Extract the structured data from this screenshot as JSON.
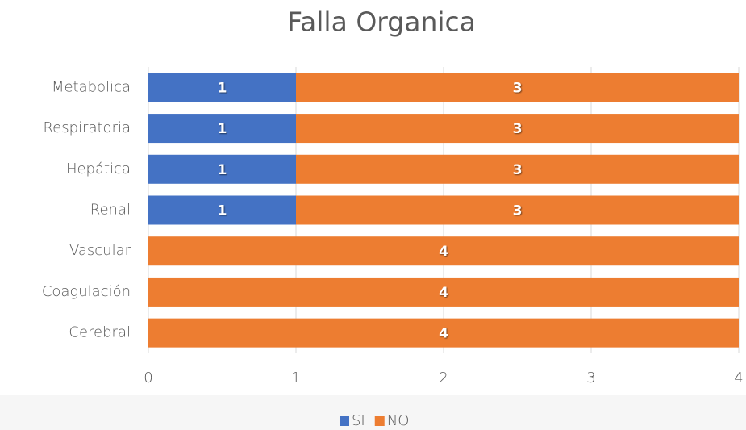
{
  "chart_data": {
    "type": "stacked-bar-horizontal",
    "title": "Falla Organica",
    "categories": [
      "Metabolica",
      "Respiratoria",
      "Hepática",
      "Renal",
      "Vascular",
      "Coagulación",
      "Cerebral"
    ],
    "series": [
      {
        "name": "SI",
        "color": "#4472c4",
        "values": [
          1,
          1,
          1,
          1,
          0,
          0,
          0
        ]
      },
      {
        "name": "NO",
        "color": "#ed7d31",
        "values": [
          3,
          3,
          3,
          3,
          4,
          4,
          4
        ]
      }
    ],
    "xlim": [
      0,
      4
    ],
    "xticks": [
      0,
      1,
      2,
      3,
      4
    ],
    "grid": true,
    "legend": "bottom"
  }
}
